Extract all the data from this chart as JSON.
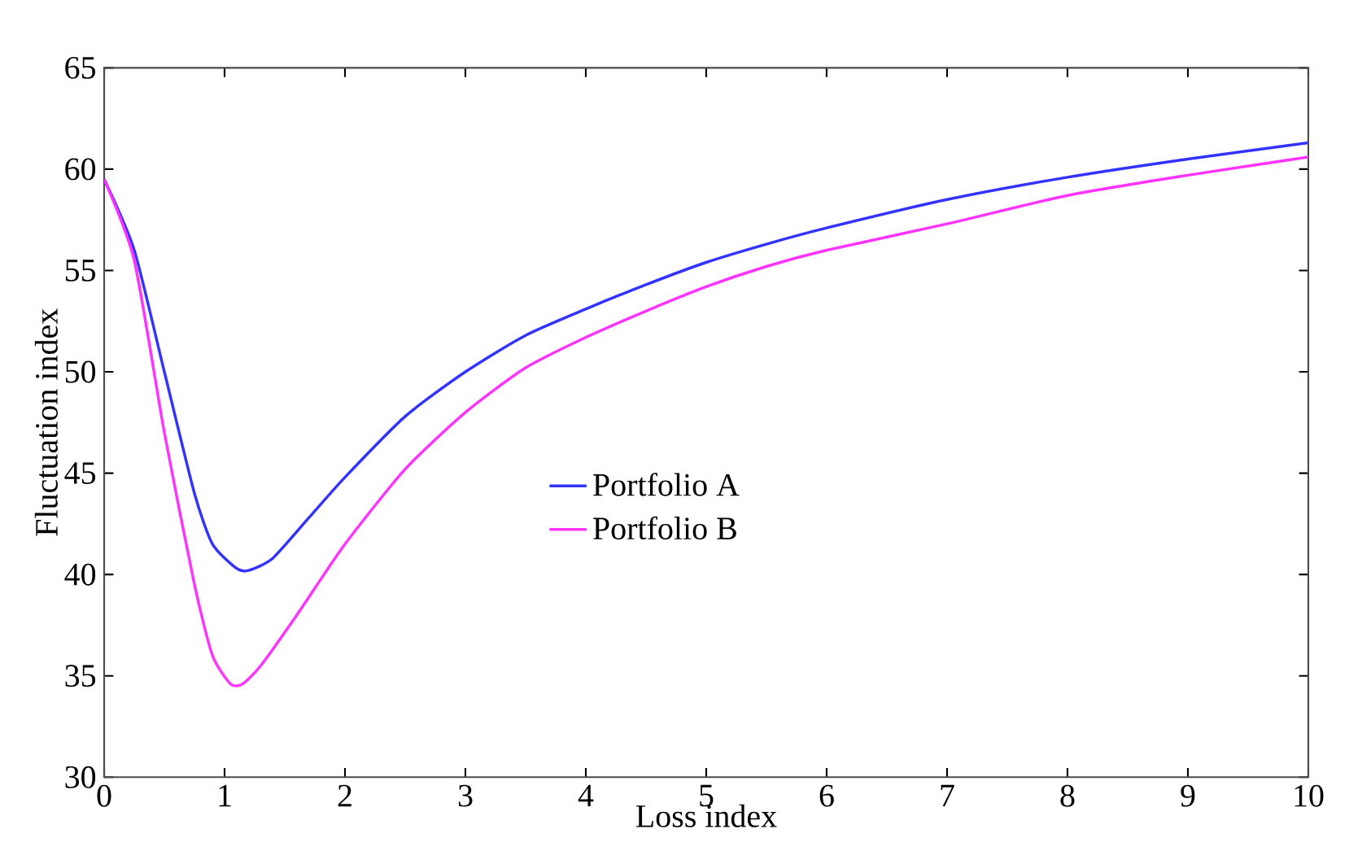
{
  "chart_data": {
    "type": "line",
    "xlabel": "Loss index",
    "ylabel": "Fluctuation index",
    "xlim": [
      0,
      10
    ],
    "ylim": [
      30,
      65
    ],
    "xticks": [
      0,
      1,
      2,
      3,
      4,
      5,
      6,
      7,
      8,
      9,
      10
    ],
    "yticks": [
      30,
      35,
      40,
      45,
      50,
      55,
      60,
      65
    ],
    "legend": "center",
    "grid": false,
    "marker": "none",
    "line_style": "solid",
    "series": [
      {
        "name": "Portfolio A",
        "color": "#3333ff",
        "x": [
          0,
          0.25,
          0.5,
          0.75,
          0.9,
          1.1,
          1.2,
          1.4,
          1.7,
          2,
          2.5,
          3,
          3.5,
          4,
          4.5,
          5,
          5.5,
          6,
          7,
          8,
          9,
          10
        ],
        "values": [
          59.5,
          56,
          50,
          44,
          41.5,
          40.3,
          40.2,
          40.8,
          42.8,
          44.8,
          47.8,
          50,
          51.8,
          53.1,
          54.3,
          55.4,
          56.3,
          57.1,
          58.5,
          59.6,
          60.5,
          61.3
        ]
      },
      {
        "name": "Portfolio B",
        "color": "#ff33ff",
        "x": [
          0,
          0.25,
          0.5,
          0.75,
          0.9,
          1.05,
          1.15,
          1.3,
          1.6,
          2,
          2.5,
          3,
          3.5,
          4,
          4.5,
          5,
          5.5,
          6,
          7,
          8,
          9,
          10
        ],
        "values": [
          59.5,
          55.5,
          47,
          39.5,
          36,
          34.6,
          34.6,
          35.5,
          38,
          41.5,
          45.2,
          48,
          50.2,
          51.7,
          53,
          54.2,
          55.2,
          56,
          57.3,
          58.7,
          59.7,
          60.6
        ]
      }
    ]
  }
}
